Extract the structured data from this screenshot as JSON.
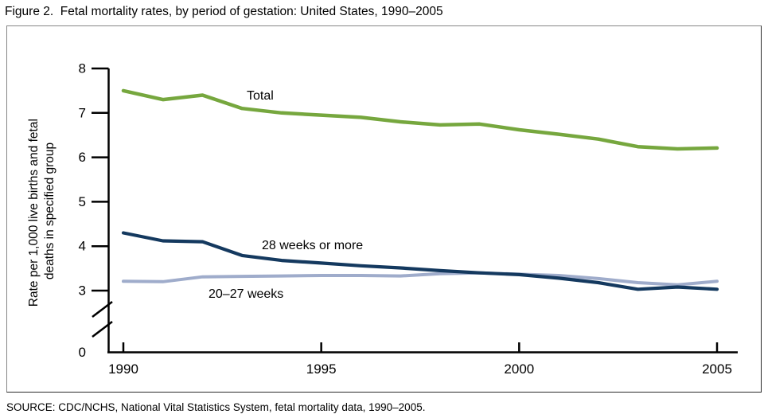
{
  "title": "Figure 2.  Fetal mortality rates, by period of gestation: United States, 1990–2005",
  "source": "SOURCE: CDC/NCHS, National Vital Statistics System, fetal mortality data, 1990–2005.",
  "chart_data": {
    "type": "line",
    "title": "Fetal mortality rates, by period of gestation: United States, 1990–2005",
    "xlabel": "",
    "ylabel_line1": "Rate per 1,000 live births and fetal",
    "ylabel_line2": "deaths in specified group",
    "x": [
      1990,
      1991,
      1992,
      1993,
      1994,
      1995,
      1996,
      1997,
      1998,
      1999,
      2000,
      2001,
      2002,
      2003,
      2004,
      2005
    ],
    "xticks": [
      1990,
      1995,
      2000,
      2005
    ],
    "yticks": [
      8,
      7,
      6,
      5,
      4,
      3
    ],
    "ytick_zero": "0",
    "axis_break": true,
    "ylim": [
      0,
      8
    ],
    "grid": false,
    "legend_position": "inline-labels",
    "series": [
      {
        "name": "Total",
        "color": "#76A73E",
        "values": [
          7.5,
          7.3,
          7.4,
          7.1,
          7.0,
          6.95,
          6.9,
          6.8,
          6.73,
          6.75,
          6.62,
          6.52,
          6.41,
          6.24,
          6.19,
          6.21
        ]
      },
      {
        "name": "28 weeks or more",
        "color": "#14395F",
        "values": [
          4.3,
          4.12,
          4.1,
          3.79,
          3.68,
          3.62,
          3.56,
          3.51,
          3.45,
          3.4,
          3.36,
          3.28,
          3.18,
          3.03,
          3.08,
          3.03
        ]
      },
      {
        "name": "20–27 weeks",
        "color": "#9FACCB",
        "values": [
          3.21,
          3.2,
          3.31,
          3.32,
          3.33,
          3.34,
          3.34,
          3.33,
          3.38,
          3.4,
          3.37,
          3.34,
          3.27,
          3.18,
          3.13,
          3.21
        ]
      }
    ]
  }
}
